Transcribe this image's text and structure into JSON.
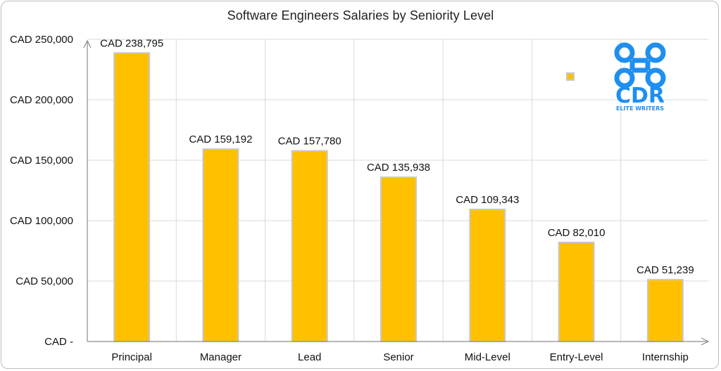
{
  "chart_data": {
    "type": "bar",
    "title": "Software Engineers Salaries by Seniority Level",
    "xlabel": "",
    "ylabel": "",
    "categories": [
      "Principal",
      "Manager",
      "Lead",
      "Senior",
      "Mid-Level",
      "Entry-Level",
      "Internship"
    ],
    "values": [
      238795,
      159192,
      157780,
      135938,
      109343,
      82010,
      51239
    ],
    "data_labels": [
      "CAD 238,795",
      "CAD 159,192",
      "CAD 157,780",
      "CAD 135,938",
      "CAD 109,343",
      "CAD 82,010",
      "CAD 51,239"
    ],
    "ylim": [
      0,
      250000
    ],
    "yticks": [
      0,
      50000,
      100000,
      150000,
      200000,
      250000
    ],
    "ytick_labels": [
      "CAD -",
      "CAD 50,000",
      "CAD 100,000",
      "CAD 150,000",
      "CAD 200,000",
      "CAD 250,000"
    ],
    "grid": true,
    "colors": {
      "bar": "#FFC000",
      "bar_edge": "#C9C9C9",
      "grid": "#D9D9D9",
      "axis": "#8C8C8C"
    }
  },
  "logo": {
    "wordmark": "CDR",
    "tagline": "ELITE WRITERS",
    "color": "#1E8FF0",
    "icon": "command-key-icon"
  }
}
